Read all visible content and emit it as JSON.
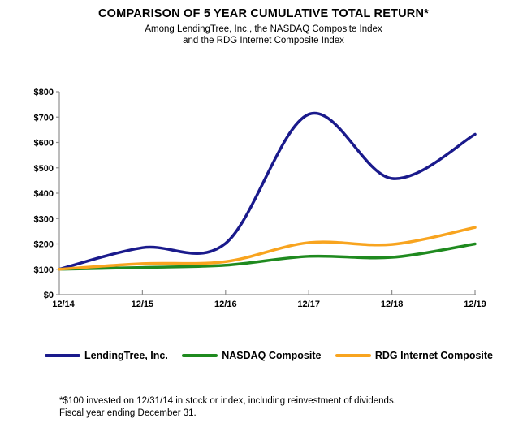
{
  "chart_data": {
    "type": "line",
    "title": "COMPARISON OF 5 YEAR CUMULATIVE TOTAL RETURN*",
    "subtitle_line1": "Among LendingTree, Inc., the NASDAQ Composite Index",
    "subtitle_line2": "and the RDG Internet Composite Index",
    "categories": [
      "12/14",
      "12/15",
      "12/16",
      "12/17",
      "12/18",
      "12/19"
    ],
    "series": [
      {
        "name": "LendingTree, Inc.",
        "color": "#1A1A8C",
        "values": [
          100,
          185,
          202,
          711,
          458,
          632
        ]
      },
      {
        "name": "NASDAQ Composite",
        "color": "#1F8A1F",
        "values": [
          100,
          107,
          116,
          151,
          147,
          200
        ]
      },
      {
        "name": "RDG Internet Composite",
        "color": "#F8A41F",
        "values": [
          100,
          122,
          130,
          205,
          198,
          265
        ]
      }
    ],
    "ylim": [
      0,
      800
    ],
    "ytick_step": 100,
    "ytick_labels": [
      "$0",
      "$100",
      "$200",
      "$300",
      "$400",
      "$500",
      "$600",
      "$700",
      "$800"
    ],
    "grid": false,
    "smoothed": true,
    "legend_position": "bottom",
    "axis_color": "#909090"
  },
  "footnote": {
    "line1": "*$100 invested on 12/31/14 in stock or index, including reinvestment of dividends.",
    "line2": "Fiscal year ending December 31."
  }
}
